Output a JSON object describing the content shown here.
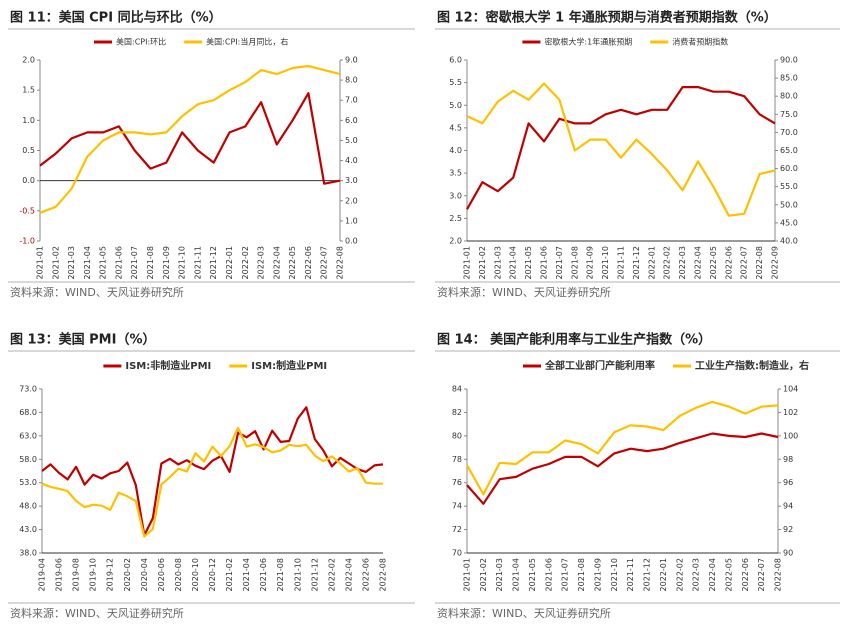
{
  "chart_data": [
    {
      "type": "line",
      "title": "图 11：美国 CPI 同比与环比（%）",
      "source": "资料来源：WIND、天风证券研究所",
      "categories": [
        "2021-01",
        "2021-02",
        "2021-03",
        "2021-04",
        "2021-05",
        "2021-06",
        "2021-07",
        "2021-08",
        "2021-09",
        "2021-10",
        "2021-11",
        "2021-12",
        "2022-01",
        "2022-02",
        "2022-03",
        "2022-04",
        "2022-05",
        "2022-06",
        "2022-07",
        "2022-08"
      ],
      "series": [
        {
          "name": "美国:CPI:环比",
          "color": "#c00000",
          "values": [
            0.25,
            0.45,
            0.7,
            0.8,
            0.8,
            0.9,
            0.5,
            0.2,
            0.3,
            0.8,
            0.5,
            0.3,
            0.8,
            0.9,
            1.3,
            0.6,
            1.0,
            1.45,
            -0.05,
            0.0
          ]
        },
        {
          "name": "美国:CPI:当月同比，右",
          "color": "#ffc000",
          "axis": "y2",
          "values": [
            1.4,
            1.7,
            2.6,
            4.2,
            5.0,
            5.4,
            5.4,
            5.3,
            5.4,
            6.2,
            6.8,
            7.0,
            7.5,
            7.9,
            8.5,
            8.3,
            8.6,
            8.7,
            8.5,
            8.3
          ]
        }
      ],
      "ylim": [
        -1,
        2
      ],
      "yticks": [
        {
          "value": -1,
          "label": "-1.0"
        },
        {
          "value": -0.5,
          "label": "-0.5"
        },
        {
          "value": 0,
          "label": "0.0"
        },
        0.5,
        {
          "value": 1,
          "label": "1.0"
        },
        1.5,
        {
          "value": 2,
          "label": "2.0"
        }
      ],
      "y2lim": [
        0,
        9
      ],
      "y2ticks": [
        {
          "value": 0,
          "label": "0.0"
        },
        {
          "value": 1,
          "label": "1.0"
        },
        {
          "value": 2,
          "label": "2.0"
        },
        {
          "value": 3,
          "label": "3.0"
        },
        {
          "value": 4,
          "label": "4.0"
        },
        {
          "value": 5,
          "label": "5.0"
        },
        {
          "value": 6,
          "label": "6.0"
        },
        {
          "value": 7,
          "label": "7.0"
        },
        {
          "value": 8,
          "label": "8.0"
        },
        {
          "value": 9,
          "label": "9.0"
        }
      ]
    },
    {
      "type": "line",
      "title": "图 12：密歇根大学 1 年通胀预期与消费者预期指数（%）",
      "source": "资料来源：WIND、天风证券研究所",
      "categories": [
        "2021-01",
        "2021-02",
        "2021-03",
        "2021-04",
        "2021-05",
        "2021-06",
        "2021-07",
        "2021-08",
        "2021-09",
        "2021-10",
        "2021-11",
        "2021-12",
        "2022-01",
        "2022-02",
        "2022-03",
        "2022-04",
        "2022-05",
        "2022-06",
        "2022-07",
        "2022-08",
        "2022-09"
      ],
      "series": [
        {
          "name": "密歇根大学:1年通胀预期",
          "color": "#c00000",
          "values": [
            2.7,
            3.3,
            3.1,
            3.4,
            4.6,
            4.2,
            4.7,
            4.6,
            4.6,
            4.8,
            4.9,
            4.8,
            4.9,
            4.9,
            5.4,
            5.4,
            5.3,
            5.3,
            5.2,
            4.8,
            4.6
          ]
        },
        {
          "name": "消费者预期指数",
          "color": "#ffc000",
          "axis": "y2",
          "values": [
            74.5,
            72.5,
            78.5,
            81.5,
            79,
            83.5,
            79,
            65,
            68,
            68,
            63,
            68,
            64,
            59.5,
            54,
            62,
            55,
            47,
            47.5,
            58.5,
            59.5
          ]
        }
      ],
      "ylim": [
        2,
        6
      ],
      "yticks": [
        {
          "value": 2,
          "label": "2.0"
        },
        2.5,
        {
          "value": 3,
          "label": "3.0"
        },
        3.5,
        {
          "value": 4,
          "label": "4.0"
        },
        4.5,
        {
          "value": 5,
          "label": "5.0"
        },
        5.5,
        {
          "value": 6,
          "label": "6.0"
        }
      ],
      "y2lim": [
        40,
        90
      ],
      "y2ticks": [
        {
          "value": 40,
          "label": "40.0"
        },
        {
          "value": 45,
          "label": "45.0"
        },
        {
          "value": 50,
          "label": "50.0"
        },
        {
          "value": 55,
          "label": "55.0"
        },
        {
          "value": 60,
          "label": "60.0"
        },
        {
          "value": 65,
          "label": "65.0"
        },
        {
          "value": 70,
          "label": "70.0"
        },
        {
          "value": 75,
          "label": "75.0"
        },
        {
          "value": 80,
          "label": "80.0"
        },
        {
          "value": 85,
          "label": "85.0"
        },
        {
          "value": 90,
          "label": "90.0"
        }
      ]
    },
    {
      "type": "line",
      "title": "图 13：美国 PMI（%）",
      "source": "资料来源：WIND、天风证券研究所",
      "categories": [
        "2019-04",
        null,
        "2019-06",
        null,
        "2019-08",
        null,
        "2019-10",
        null,
        "2019-12",
        null,
        "2020-02",
        null,
        "2020-04",
        null,
        "2020-06",
        null,
        "2020-08",
        null,
        "2020-10",
        null,
        "2020-12",
        null,
        "2021-02",
        null,
        "2021-04",
        null,
        "2021-06",
        null,
        "2021-08",
        null,
        "2021-10",
        null,
        "2021-12",
        null,
        "2022-02",
        null,
        "2022-04",
        null,
        "2022-06",
        null,
        "2022-08"
      ],
      "series": [
        {
          "name": "ISM:非制造业PMI",
          "color": "#c00000",
          "values": [
            55.5,
            56.9,
            55.1,
            53.7,
            56.4,
            52.6,
            54.7,
            53.9,
            55.0,
            55.5,
            57.3,
            52.5,
            41.8,
            45.4,
            57.1,
            58.1,
            56.9,
            57.8,
            56.6,
            55.9,
            57.7,
            58.7,
            55.3,
            63.7,
            62.7,
            64.0,
            60.1,
            64.1,
            61.7,
            61.9,
            66.7,
            69.1,
            62.3,
            59.9,
            56.5,
            58.3,
            57.1,
            55.9,
            55.3,
            56.7,
            56.9
          ]
        },
        {
          "name": "ISM:制造业PMI",
          "color": "#ffc000",
          "values": [
            52.8,
            52.1,
            51.7,
            51.2,
            49.1,
            47.8,
            48.3,
            48.1,
            47.2,
            50.9,
            50.1,
            49.1,
            41.5,
            43.1,
            52.6,
            54.2,
            56.0,
            55.4,
            59.3,
            57.5,
            60.7,
            58.7,
            60.8,
            64.7,
            60.7,
            61.2,
            60.6,
            59.5,
            59.9,
            61.1,
            60.8,
            61.1,
            58.8,
            57.6,
            58.6,
            57.1,
            55.4,
            56.1,
            53.0,
            52.8,
            52.8
          ]
        }
      ],
      "ylim": [
        38,
        73
      ],
      "yticks": [
        {
          "value": 38,
          "label": "38.0"
        },
        {
          "value": 43,
          "label": "43.0"
        },
        {
          "value": 48,
          "label": "48.0"
        },
        {
          "value": 53,
          "label": "53.0"
        },
        {
          "value": 58,
          "label": "58.0"
        },
        {
          "value": 63,
          "label": "63.0"
        },
        {
          "value": 68,
          "label": "68.0"
        },
        {
          "value": 73,
          "label": "73.0"
        }
      ]
    },
    {
      "type": "line",
      "title": "图 14： 美国产能利用率与工业生产指数（%）",
      "source": "资料来源：WIND、天风证券研究所",
      "categories": [
        "2021-01",
        "2021-02",
        "2021-03",
        "2021-04",
        "2021-05",
        "2021-06",
        "2021-07",
        "2021-08",
        "2021-09",
        "2021-10",
        "2021-11",
        "2021-12",
        "2022-01",
        "2022-02",
        "2022-03",
        "2022-04",
        "2022-05",
        "2022-06",
        "2022-07",
        "2022-08"
      ],
      "series": [
        {
          "name": "全部工业部门产能利用率",
          "color": "#c00000",
          "values": [
            75.8,
            74.2,
            76.3,
            76.5,
            77.2,
            77.6,
            78.2,
            78.2,
            77.4,
            78.5,
            78.9,
            78.7,
            78.9,
            79.4,
            79.8,
            80.2,
            80.0,
            79.9,
            80.2,
            79.9
          ]
        },
        {
          "name": "工业生产指数:制造业，右",
          "color": "#ffc000",
          "axis": "y2",
          "values": [
            97.5,
            95.0,
            97.7,
            97.6,
            98.6,
            98.6,
            99.6,
            99.3,
            98.5,
            100.3,
            100.9,
            100.8,
            100.5,
            101.7,
            102.4,
            102.9,
            102.5,
            101.9,
            102.5,
            102.6
          ]
        }
      ],
      "ylim": [
        70,
        84
      ],
      "yticks": [
        70,
        72,
        74,
        76,
        78,
        80,
        82,
        84
      ],
      "y2lim": [
        90,
        104
      ],
      "y2ticks": [
        90,
        92,
        94,
        96,
        98,
        100,
        102,
        104
      ]
    }
  ]
}
